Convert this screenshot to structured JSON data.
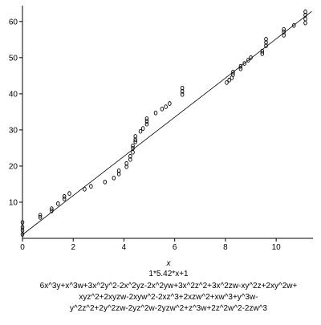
{
  "chart_data": {
    "type": "scatter",
    "x_label": "x",
    "equation": "1*5.42*x+1",
    "annotations": [
      "6x^3y+x^3w+3x^2y^2-2x^2yz-2x^2yw+3x^2z^2+3x^2zw-xy^2z+2xy^2w+",
      "xyz^2+2xyzw-2xyw^2-2xz^3+2xzw^2+xw^3+y^3w-",
      "y^2z^2+2y^2zw-2yz^2w-2yzw^2+z^3w+2z^2w^2-2zw^3"
    ],
    "xlim": [
      0,
      11.45
    ],
    "ylim": [
      0,
      64.4
    ],
    "xticks": [
      0,
      2,
      4,
      6,
      8,
      10
    ],
    "yticks": [
      10,
      20,
      30,
      40,
      50,
      60
    ],
    "color": "#000000",
    "series": [
      {
        "type": "scatter",
        "x": [
          0,
          0,
          0,
          0,
          0.7,
          0.7,
          1.15,
          1.15,
          1.4,
          1.65,
          1.65,
          1.85,
          2.45,
          2.7,
          3.25,
          3.6,
          3.8,
          3.8,
          4.1,
          4.1,
          4.25,
          4.25,
          4.35,
          4.35,
          4.35,
          4.45,
          4.45,
          4.45,
          4.65,
          4.75,
          4.9,
          4.9,
          4.9,
          5.25,
          5.5,
          5.65,
          5.8,
          6.3,
          6.3,
          6.3,
          8.05,
          8.15,
          8.25,
          8.3,
          8.3,
          8.6,
          8.6,
          8.75,
          8.9,
          9.0,
          9.45,
          9.45,
          9.6,
          9.6,
          9.6,
          10.3,
          10.3,
          10.3,
          10.7,
          11.15,
          11.15,
          11.15,
          11.15
        ],
        "values": [
          4.4,
          3.1,
          2.2,
          1.1,
          6.4,
          5.8,
          8.2,
          7.6,
          9.6,
          10.9,
          11.6,
          12.4,
          13.6,
          14.4,
          15.6,
          16.7,
          17.8,
          18.7,
          19.8,
          20.7,
          21.8,
          22.7,
          23.8,
          24.9,
          25.6,
          26.7,
          27.3,
          28.2,
          29.6,
          30.4,
          31.6,
          32.4,
          33.1,
          34.7,
          35.8,
          36.4,
          37.3,
          39.8,
          40.7,
          41.6,
          43.1,
          43.8,
          44.4,
          45.3,
          46.0,
          46.9,
          47.6,
          48.4,
          49.3,
          50.0,
          51.1,
          51.8,
          53.3,
          54.2,
          55.1,
          56.2,
          57.1,
          57.8,
          58.9,
          59.6,
          60.7,
          61.8,
          62.7
        ]
      },
      {
        "type": "line",
        "x": [
          0,
          11.4
        ],
        "values": [
          1,
          62.8
        ]
      }
    ]
  }
}
